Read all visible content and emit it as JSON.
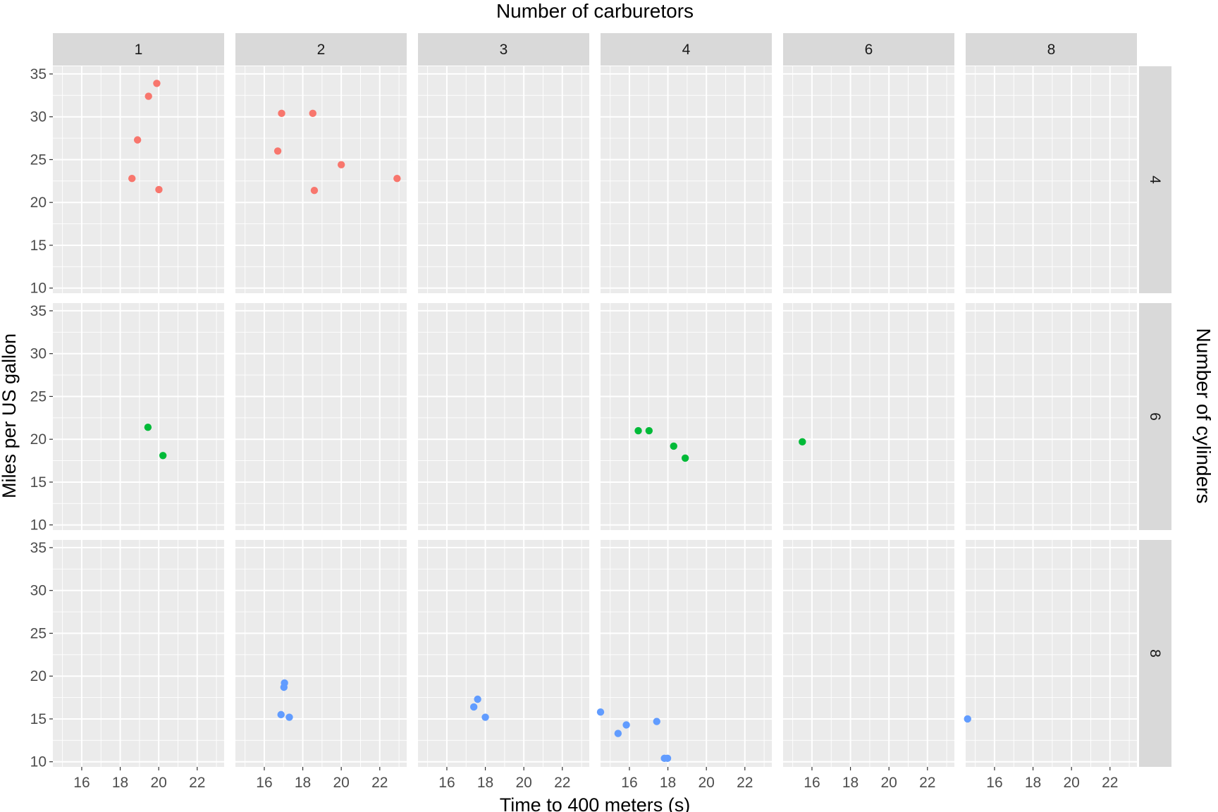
{
  "chart_data": {
    "type": "scatter",
    "facet_layout": "grid",
    "col_facet": {
      "title": "Number of carburetors",
      "levels": [
        "1",
        "2",
        "3",
        "4",
        "6",
        "8"
      ]
    },
    "row_facet": {
      "title": "Number of cylinders",
      "levels": [
        "4",
        "6",
        "8"
      ]
    },
    "xlabel": "Time to 400 meters (s)",
    "ylabel": "Miles per US gallon",
    "xlim": [
      14.5,
      23.4
    ],
    "ylim": [
      9.4,
      35.9
    ],
    "xticks": [
      16,
      18,
      20,
      22
    ],
    "yticks": [
      10,
      15,
      20,
      25,
      30,
      35
    ],
    "colors": {
      "4": "#F8766D",
      "6": "#00BA38",
      "8": "#619CFF"
    },
    "panel_background": "#EBEBEB",
    "strip_background": "#D9D9D9",
    "grid_color": "#FFFFFF",
    "points": [
      {
        "cyl": "4",
        "carb": "1",
        "x": 18.61,
        "y": 22.8
      },
      {
        "cyl": "4",
        "carb": "1",
        "x": 19.47,
        "y": 32.4
      },
      {
        "cyl": "4",
        "carb": "1",
        "x": 19.9,
        "y": 33.9
      },
      {
        "cyl": "4",
        "carb": "1",
        "x": 20.01,
        "y": 21.5
      },
      {
        "cyl": "4",
        "carb": "1",
        "x": 18.9,
        "y": 27.3
      },
      {
        "cyl": "4",
        "carb": "2",
        "x": 22.9,
        "y": 22.8
      },
      {
        "cyl": "4",
        "carb": "2",
        "x": 20.0,
        "y": 24.4
      },
      {
        "cyl": "4",
        "carb": "2",
        "x": 18.52,
        "y": 30.4
      },
      {
        "cyl": "4",
        "carb": "2",
        "x": 16.7,
        "y": 26.0
      },
      {
        "cyl": "4",
        "carb": "2",
        "x": 16.9,
        "y": 30.4
      },
      {
        "cyl": "4",
        "carb": "2",
        "x": 18.6,
        "y": 21.4
      },
      {
        "cyl": "6",
        "carb": "1",
        "x": 19.44,
        "y": 21.4
      },
      {
        "cyl": "6",
        "carb": "1",
        "x": 20.22,
        "y": 18.1
      },
      {
        "cyl": "6",
        "carb": "4",
        "x": 16.46,
        "y": 21.0
      },
      {
        "cyl": "6",
        "carb": "4",
        "x": 17.02,
        "y": 21.0
      },
      {
        "cyl": "6",
        "carb": "4",
        "x": 18.3,
        "y": 19.2
      },
      {
        "cyl": "6",
        "carb": "4",
        "x": 18.9,
        "y": 17.8
      },
      {
        "cyl": "6",
        "carb": "6",
        "x": 15.5,
        "y": 19.7
      },
      {
        "cyl": "8",
        "carb": "2",
        "x": 17.02,
        "y": 18.7
      },
      {
        "cyl": "8",
        "carb": "2",
        "x": 16.87,
        "y": 15.5
      },
      {
        "cyl": "8",
        "carb": "2",
        "x": 17.3,
        "y": 15.2
      },
      {
        "cyl": "8",
        "carb": "2",
        "x": 17.05,
        "y": 19.2
      },
      {
        "cyl": "8",
        "carb": "3",
        "x": 17.4,
        "y": 16.4
      },
      {
        "cyl": "8",
        "carb": "3",
        "x": 17.6,
        "y": 17.3
      },
      {
        "cyl": "8",
        "carb": "3",
        "x": 18.0,
        "y": 15.2
      },
      {
        "cyl": "8",
        "carb": "4",
        "x": 15.84,
        "y": 14.3
      },
      {
        "cyl": "8",
        "carb": "4",
        "x": 17.98,
        "y": 10.4
      },
      {
        "cyl": "8",
        "carb": "4",
        "x": 17.82,
        "y": 10.4
      },
      {
        "cyl": "8",
        "carb": "4",
        "x": 17.42,
        "y": 14.7
      },
      {
        "cyl": "8",
        "carb": "4",
        "x": 15.41,
        "y": 13.3
      },
      {
        "cyl": "8",
        "carb": "4",
        "x": 14.5,
        "y": 15.8
      },
      {
        "cyl": "8",
        "carb": "8",
        "x": 14.6,
        "y": 15.0
      }
    ]
  }
}
